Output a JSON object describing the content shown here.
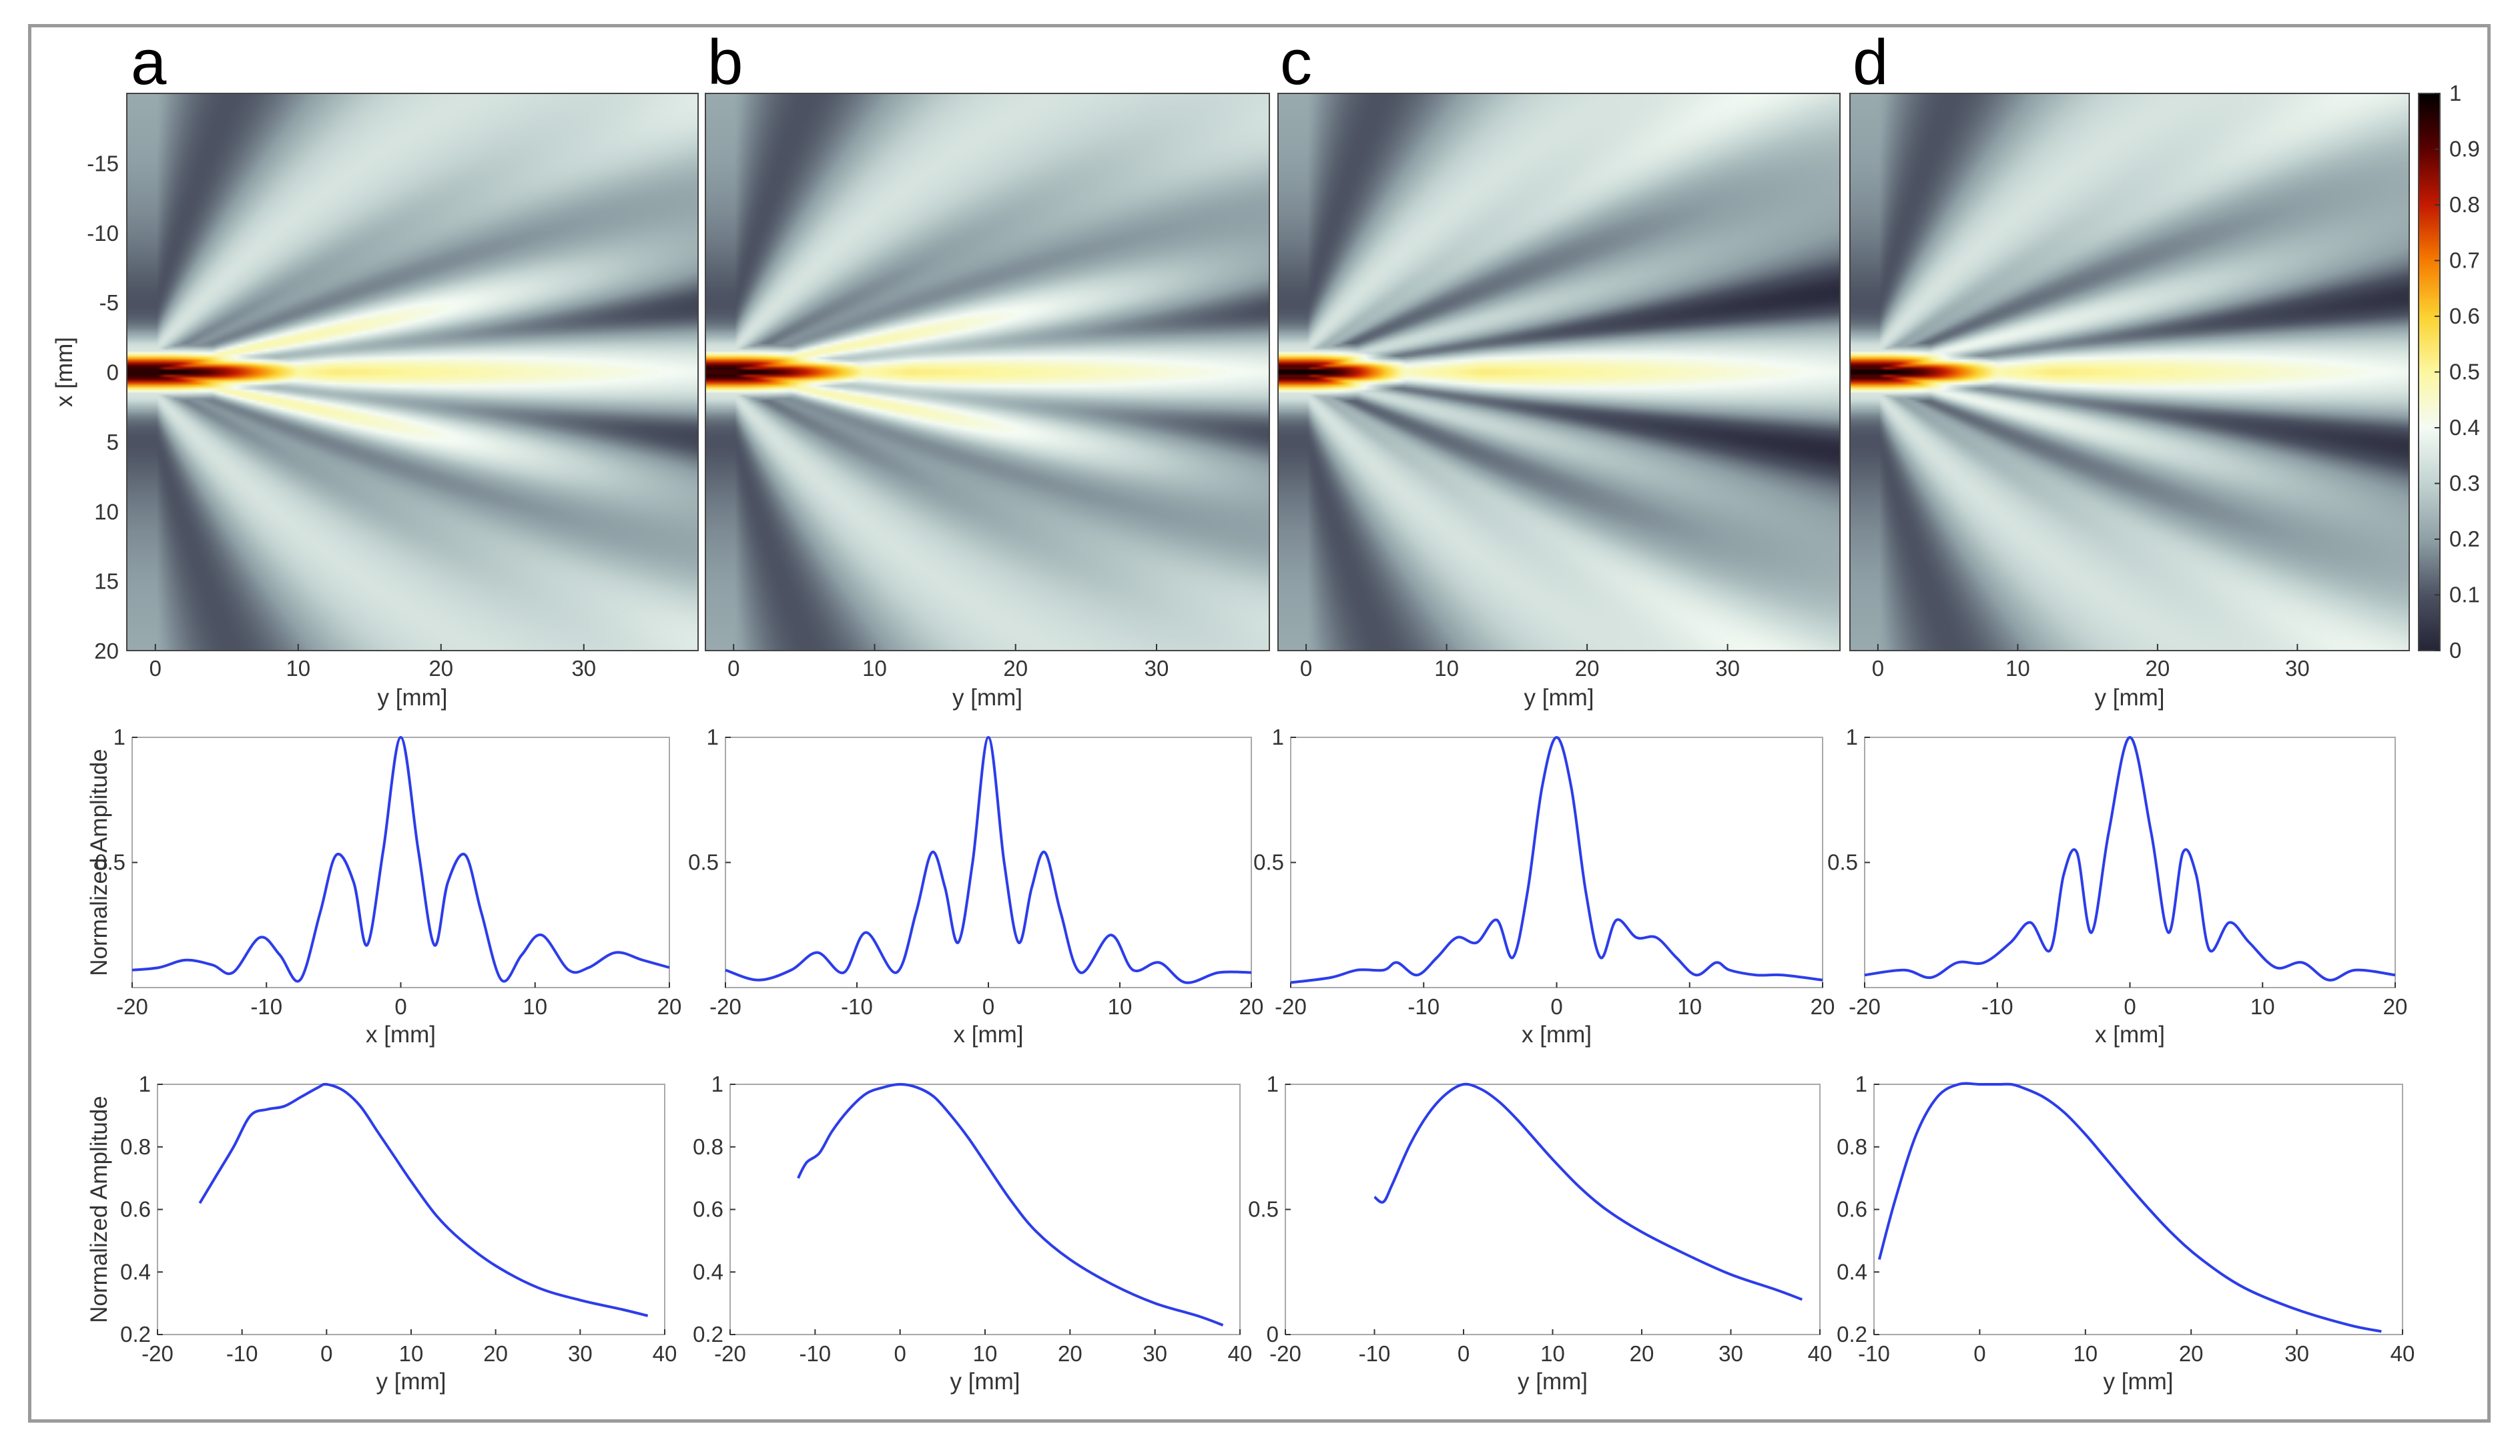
{
  "colors": {
    "curve": "#2c3dea",
    "axis": "#555555",
    "frame": "#9a9a9a",
    "colormap": [
      "#242436",
      "#4c5262",
      "#8fa0a6",
      "#c2d3d1",
      "#f4fbf4",
      "#fcf7a0",
      "#fbd230",
      "#f67b00",
      "#c41a00",
      "#5a0000",
      "#000000"
    ]
  },
  "chart_data": [
    {
      "panel": "a",
      "type": "heatmap",
      "title": "a",
      "xlabel": "y [mm]",
      "ylabel": "x [mm]",
      "xlim": [
        -2,
        38
      ],
      "ylim": [
        -20,
        20
      ],
      "xticks": [
        0,
        10,
        20,
        30
      ],
      "yticks": [
        -15,
        -10,
        -5,
        0,
        5,
        10,
        15,
        20
      ],
      "pattern": {
        "lobe_angle_deg": 13,
        "side_strength": 0.58,
        "focal_extent_mm": 12
      }
    },
    {
      "panel": "b",
      "type": "heatmap",
      "title": "b",
      "xlabel": "y [mm]",
      "xlim": [
        -2,
        38
      ],
      "ylim": [
        -20,
        20
      ],
      "xticks": [
        0,
        10,
        20,
        30
      ],
      "pattern": {
        "lobe_angle_deg": 12,
        "side_strength": 0.55,
        "focal_extent_mm": 11
      }
    },
    {
      "panel": "c",
      "type": "heatmap",
      "title": "c",
      "xlabel": "y [mm]",
      "xlim": [
        -2,
        38
      ],
      "ylim": [
        -20,
        20
      ],
      "xticks": [
        0,
        10,
        20,
        30
      ],
      "pattern": {
        "lobe_angle_deg": 16,
        "side_strength": 0.35,
        "focal_extent_mm": 8
      }
    },
    {
      "panel": "d",
      "type": "heatmap",
      "title": "d",
      "xlabel": "y [mm]",
      "xlim": [
        -2,
        38
      ],
      "ylim": [
        -20,
        20
      ],
      "xticks": [
        0,
        10,
        20,
        30
      ],
      "pattern": {
        "lobe_angle_deg": 15,
        "side_strength": 0.45,
        "focal_extent_mm": 10
      },
      "colorbar": {
        "range": [
          0,
          1
        ],
        "ticks": [
          0,
          0.1,
          0.2,
          0.3,
          0.4,
          0.5,
          0.6,
          0.7,
          0.8,
          0.9,
          1
        ]
      }
    },
    {
      "panel": "a",
      "type": "line",
      "xlabel": "x [mm]",
      "ylabel": "Normalized Amplitude",
      "xlim": [
        -20,
        20
      ],
      "ylim": [
        0,
        1
      ],
      "xticks": [
        -20,
        -10,
        0,
        10,
        20
      ],
      "yticks": [
        0.5,
        1
      ],
      "x": [
        -20,
        -18,
        -16,
        -14,
        -12.5,
        -10.5,
        -9,
        -7.5,
        -6,
        -4.8,
        -3.5,
        -2.5,
        -1.3,
        0,
        1.3,
        2.5,
        3.5,
        4.8,
        6,
        7.5,
        9,
        10.5,
        12.5,
        14,
        16,
        18,
        20
      ],
      "y": [
        0.07,
        0.08,
        0.11,
        0.09,
        0.06,
        0.2,
        0.13,
        0.03,
        0.3,
        0.53,
        0.42,
        0.17,
        0.55,
        1.0,
        0.55,
        0.17,
        0.42,
        0.53,
        0.3,
        0.03,
        0.13,
        0.21,
        0.07,
        0.08,
        0.14,
        0.11,
        0.08
      ]
    },
    {
      "panel": "b",
      "type": "line",
      "xlim": [
        -20,
        20
      ],
      "ylim": [
        0,
        1
      ],
      "xlabel": "x [mm]",
      "xticks": [
        -20,
        -10,
        0,
        10,
        20
      ],
      "yticks": [
        0.5,
        1
      ],
      "x": [
        -20,
        -17.5,
        -15,
        -13,
        -11,
        -9.3,
        -7,
        -5.5,
        -4.3,
        -3.3,
        -2.3,
        -1.2,
        0,
        1.2,
        2.3,
        3.3,
        4.3,
        5.5,
        7,
        9.3,
        11,
        13,
        15,
        17.5,
        20
      ],
      "y": [
        0.07,
        0.03,
        0.07,
        0.14,
        0.06,
        0.22,
        0.06,
        0.3,
        0.54,
        0.4,
        0.18,
        0.5,
        1.0,
        0.5,
        0.18,
        0.4,
        0.54,
        0.3,
        0.06,
        0.21,
        0.07,
        0.1,
        0.02,
        0.06,
        0.06
      ]
    },
    {
      "panel": "c",
      "type": "line",
      "xlim": [
        -20,
        20
      ],
      "ylim": [
        0,
        1
      ],
      "xlabel": "x [mm]",
      "xticks": [
        -20,
        -10,
        0,
        10,
        20
      ],
      "yticks": [
        0.5,
        1
      ],
      "x": [
        -20,
        -17,
        -15,
        -13,
        -12,
        -10.5,
        -9,
        -7.5,
        -6,
        -4.5,
        -3.3,
        -2.2,
        -1.1,
        0,
        1.1,
        2.2,
        3.3,
        4.5,
        6,
        7.5,
        9,
        10.5,
        12,
        13,
        15,
        17,
        20
      ],
      "y": [
        0.02,
        0.04,
        0.07,
        0.07,
        0.1,
        0.05,
        0.12,
        0.2,
        0.18,
        0.27,
        0.12,
        0.38,
        0.8,
        1.0,
        0.8,
        0.38,
        0.12,
        0.27,
        0.2,
        0.2,
        0.12,
        0.05,
        0.1,
        0.07,
        0.05,
        0.05,
        0.03
      ]
    },
    {
      "panel": "d",
      "type": "line",
      "xlim": [
        -20,
        20
      ],
      "ylim": [
        0,
        1
      ],
      "xlabel": "x [mm]",
      "xticks": [
        -20,
        -10,
        0,
        10,
        20
      ],
      "yticks": [
        0.5,
        1
      ],
      "x": [
        -20,
        -17,
        -15,
        -13,
        -11,
        -9,
        -7.5,
        -6,
        -5,
        -4,
        -2.9,
        -1.6,
        0,
        1.6,
        2.9,
        4,
        5,
        6,
        7.5,
        9,
        11,
        13,
        15,
        17,
        20
      ],
      "y": [
        0.05,
        0.07,
        0.04,
        0.1,
        0.1,
        0.18,
        0.26,
        0.15,
        0.45,
        0.54,
        0.22,
        0.62,
        1.0,
        0.62,
        0.22,
        0.54,
        0.45,
        0.15,
        0.26,
        0.18,
        0.08,
        0.1,
        0.03,
        0.07,
        0.05
      ]
    },
    {
      "panel": "a",
      "type": "line",
      "xlabel": "y [mm]",
      "ylabel": "Normalized Amplitude",
      "xlim": [
        -20,
        40
      ],
      "ylim": [
        0.2,
        1
      ],
      "xticks": [
        -20,
        -10,
        0,
        10,
        20,
        30,
        40
      ],
      "yticks": [
        0.2,
        0.4,
        0.6,
        0.8,
        1
      ],
      "ytick_labels": [
        "0.2",
        "0.4",
        "0.6",
        "0.8",
        "1"
      ],
      "x": [
        -15,
        -13,
        -11,
        -9,
        -7,
        -5,
        -3,
        -1,
        0,
        2,
        4,
        6,
        8,
        10,
        13,
        16,
        20,
        25,
        30,
        35,
        38
      ],
      "y": [
        0.62,
        0.71,
        0.8,
        0.9,
        0.92,
        0.93,
        0.96,
        0.99,
        1.0,
        0.98,
        0.93,
        0.85,
        0.77,
        0.69,
        0.58,
        0.5,
        0.42,
        0.35,
        0.31,
        0.28,
        0.26
      ]
    },
    {
      "panel": "b",
      "type": "line",
      "xlabel": "y [mm]",
      "xlim": [
        -20,
        40
      ],
      "ylim": [
        0.2,
        1
      ],
      "xticks": [
        -20,
        -10,
        0,
        10,
        20,
        30,
        40
      ],
      "yticks": [
        0.2,
        0.4,
        0.6,
        0.8,
        1
      ],
      "ytick_labels": [
        "0.2",
        "0.4",
        "0.6",
        "0.8",
        "1"
      ],
      "x": [
        -12,
        -11,
        -9.5,
        -8,
        -6,
        -4,
        -2,
        0,
        2,
        4,
        6,
        8,
        10,
        13,
        16,
        20,
        25,
        30,
        35,
        38
      ],
      "y": [
        0.7,
        0.75,
        0.78,
        0.85,
        0.92,
        0.97,
        0.99,
        1.0,
        0.99,
        0.96,
        0.9,
        0.83,
        0.75,
        0.63,
        0.53,
        0.44,
        0.36,
        0.3,
        0.26,
        0.23
      ]
    },
    {
      "panel": "c",
      "type": "line",
      "xlabel": "y [mm]",
      "xlim": [
        -20,
        40
      ],
      "ylim": [
        0,
        1
      ],
      "xticks": [
        -20,
        -10,
        0,
        10,
        20,
        30,
        40
      ],
      "yticks": [
        0,
        0.5,
        1
      ],
      "ytick_labels": [
        "0",
        "0.5",
        "1"
      ],
      "x": [
        -10,
        -9,
        -8,
        -6,
        -4,
        -2,
        0,
        2,
        4,
        6,
        8,
        10,
        13,
        16,
        20,
        25,
        30,
        35,
        38
      ],
      "y": [
        0.55,
        0.53,
        0.6,
        0.76,
        0.88,
        0.96,
        1.0,
        0.98,
        0.93,
        0.86,
        0.78,
        0.7,
        0.59,
        0.5,
        0.41,
        0.32,
        0.24,
        0.18,
        0.14
      ]
    },
    {
      "panel": "d",
      "type": "line",
      "xlabel": "y [mm]",
      "xlim": [
        -10,
        40
      ],
      "ylim": [
        0.2,
        1
      ],
      "xticks": [
        -10,
        0,
        10,
        20,
        30,
        40
      ],
      "yticks": [
        0.2,
        0.4,
        0.6,
        0.8,
        1
      ],
      "ytick_labels": [
        "0.2",
        "0.4",
        "0.6",
        "0.8",
        "1"
      ],
      "x": [
        -9.5,
        -8,
        -6,
        -4,
        -2,
        0,
        2,
        3,
        4,
        6,
        8,
        10,
        12,
        15,
        18,
        21,
        25,
        30,
        35,
        38
      ],
      "y": [
        0.44,
        0.63,
        0.84,
        0.96,
        1.0,
        1.0,
        1.0,
        1.0,
        0.99,
        0.96,
        0.91,
        0.84,
        0.76,
        0.64,
        0.53,
        0.44,
        0.35,
        0.28,
        0.23,
        0.21
      ]
    }
  ]
}
